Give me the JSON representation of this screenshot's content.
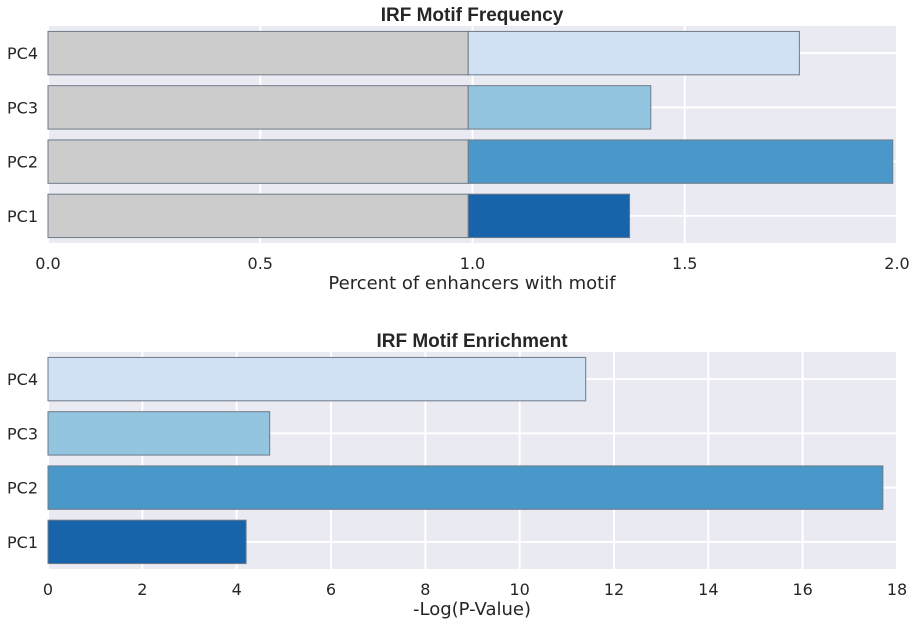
{
  "chart_data": [
    {
      "type": "bar",
      "orientation": "horizontal",
      "stacked": true,
      "title": "IRF Motif Frequency",
      "xlabel": "Percent of enhancers with motif",
      "ylabel": "",
      "categories": [
        "PC4",
        "PC3",
        "PC2",
        "PC1"
      ],
      "series": [
        {
          "values": [
            0.99,
            0.99,
            0.99,
            0.99
          ],
          "colors": [
            "#cccccc",
            "#cccccc",
            "#cccccc",
            "#cccccc"
          ]
        },
        {
          "values": [
            0.78,
            0.43,
            1.0,
            0.38
          ],
          "colors": [
            "#cfe1f2",
            "#93c4e0",
            "#4a98c9",
            "#1764ab"
          ]
        }
      ],
      "xlim": [
        0,
        2.0
      ],
      "xticks": [
        "0.0",
        "0.5",
        "1.0",
        "1.5",
        "2.0"
      ],
      "grid": true
    },
    {
      "type": "bar",
      "orientation": "horizontal",
      "title": "IRF Motif Enrichment",
      "xlabel": "-Log(P-Value)",
      "ylabel": "",
      "categories": [
        "PC4",
        "PC3",
        "PC2",
        "PC1"
      ],
      "values": [
        11.4,
        4.7,
        17.7,
        4.2
      ],
      "colors": [
        "#cfe1f2",
        "#93c4e0",
        "#4a98c9",
        "#1764ab"
      ],
      "xlim": [
        0,
        18
      ],
      "xticks": [
        "0",
        "2",
        "4",
        "6",
        "8",
        "10",
        "12",
        "14",
        "16",
        "18"
      ],
      "grid": true
    }
  ],
  "style": {
    "plot_background": "#eaeaf2",
    "grid_color": "#ffffff",
    "bar_edge_color": "#6e7a88",
    "text_color": "#262626"
  }
}
